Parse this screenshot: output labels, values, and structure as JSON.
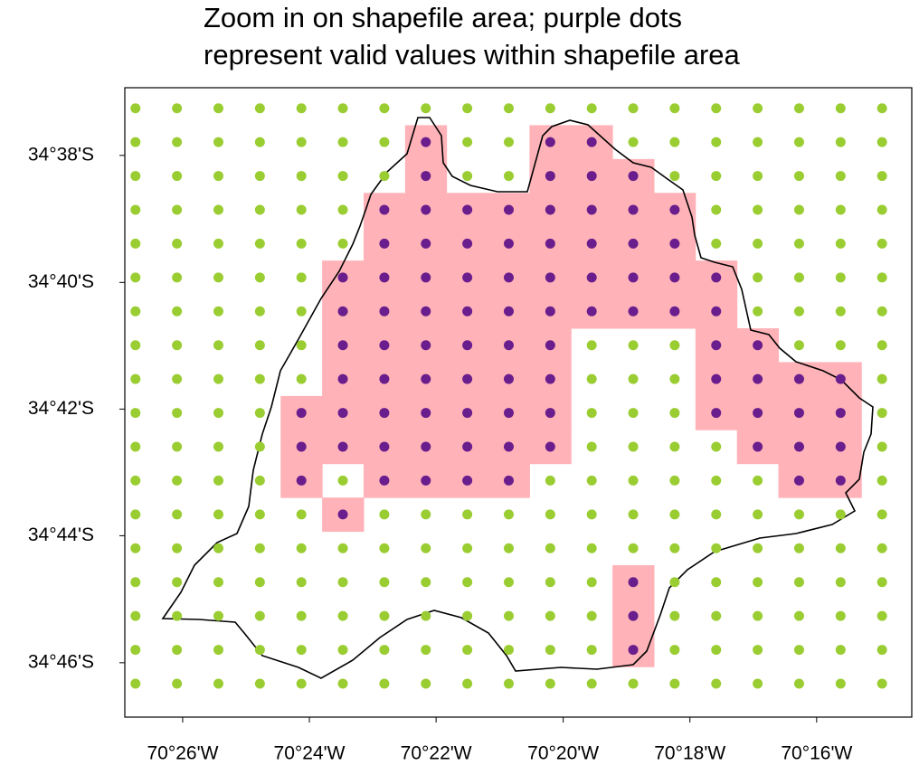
{
  "chart_data": {
    "type": "map",
    "title": [
      "Zoom in on shapefile area; purple dots",
      "represent valid values within shapefile area"
    ],
    "lons": [
      -70.4457,
      -70.4348,
      -70.4239,
      -70.413,
      -70.4021,
      -70.3912,
      -70.3803,
      -70.3694,
      -70.3585,
      -70.3476,
      -70.3367,
      -70.3258,
      -70.3149,
      -70.304,
      -70.2931,
      -70.2822,
      -70.2713,
      -70.2604,
      -70.2495
    ],
    "lats": [
      -34.6209,
      -34.6298,
      -34.6387,
      -34.6476,
      -34.6565,
      -34.6654,
      -34.6743,
      -34.6832,
      -34.6921,
      -34.701,
      -34.7099,
      -34.7188,
      -34.7277,
      -34.7366,
      -34.7455,
      -34.7544,
      -34.7633,
      -34.7722
    ],
    "valid_columns": [
      [],
      [
        7,
        10,
        11
      ],
      [
        7,
        10,
        11,
        12
      ],
      [
        6,
        7,
        8,
        9,
        10,
        11,
        12,
        13
      ],
      [
        6,
        7,
        8,
        9,
        10,
        11,
        12,
        13
      ],
      [
        5,
        6,
        7,
        8,
        9,
        10,
        11,
        12,
        13,
        14
      ],
      [
        5,
        6,
        7,
        8,
        9,
        10,
        11,
        12,
        13,
        14
      ],
      [
        5,
        6,
        7,
        8,
        9,
        10,
        14,
        15
      ],
      [
        5,
        6,
        7,
        8,
        9,
        10,
        14,
        15,
        16,
        17
      ],
      [
        4,
        5,
        6,
        7,
        8,
        9,
        10,
        14,
        15,
        16,
        17
      ],
      [
        4,
        5,
        6,
        7,
        8,
        9,
        10,
        15,
        16,
        17
      ],
      [
        4,
        6,
        7,
        8,
        9,
        16,
        17
      ],
      [
        5
      ],
      [],
      [
        12
      ],
      [
        12
      ],
      [
        12
      ],
      []
    ],
    "valid_color": "#6a1d8c",
    "invalid_color": "#9acd32",
    "cell_color": "#ffb3b8",
    "xlim": [
      -70.4485,
      -70.2417
    ],
    "ylim": [
      -34.781,
      -34.6155
    ],
    "xticks": [
      {
        "value": -70.4333,
        "label": "70°26'W"
      },
      {
        "value": -70.4,
        "label": "70°24'W"
      },
      {
        "value": -70.3667,
        "label": "70°22'W"
      },
      {
        "value": -70.3333,
        "label": "70°20'W"
      },
      {
        "value": -70.3,
        "label": "70°18'W"
      },
      {
        "value": -70.2667,
        "label": "70°16'W"
      }
    ],
    "yticks": [
      {
        "value": -34.6333,
        "label": "34°38'S"
      },
      {
        "value": -34.6667,
        "label": "34°40'S"
      },
      {
        "value": -34.7,
        "label": "34°42'S"
      },
      {
        "value": -34.7333,
        "label": "34°44'S"
      },
      {
        "value": -34.7667,
        "label": "34°46'S"
      }
    ]
  }
}
